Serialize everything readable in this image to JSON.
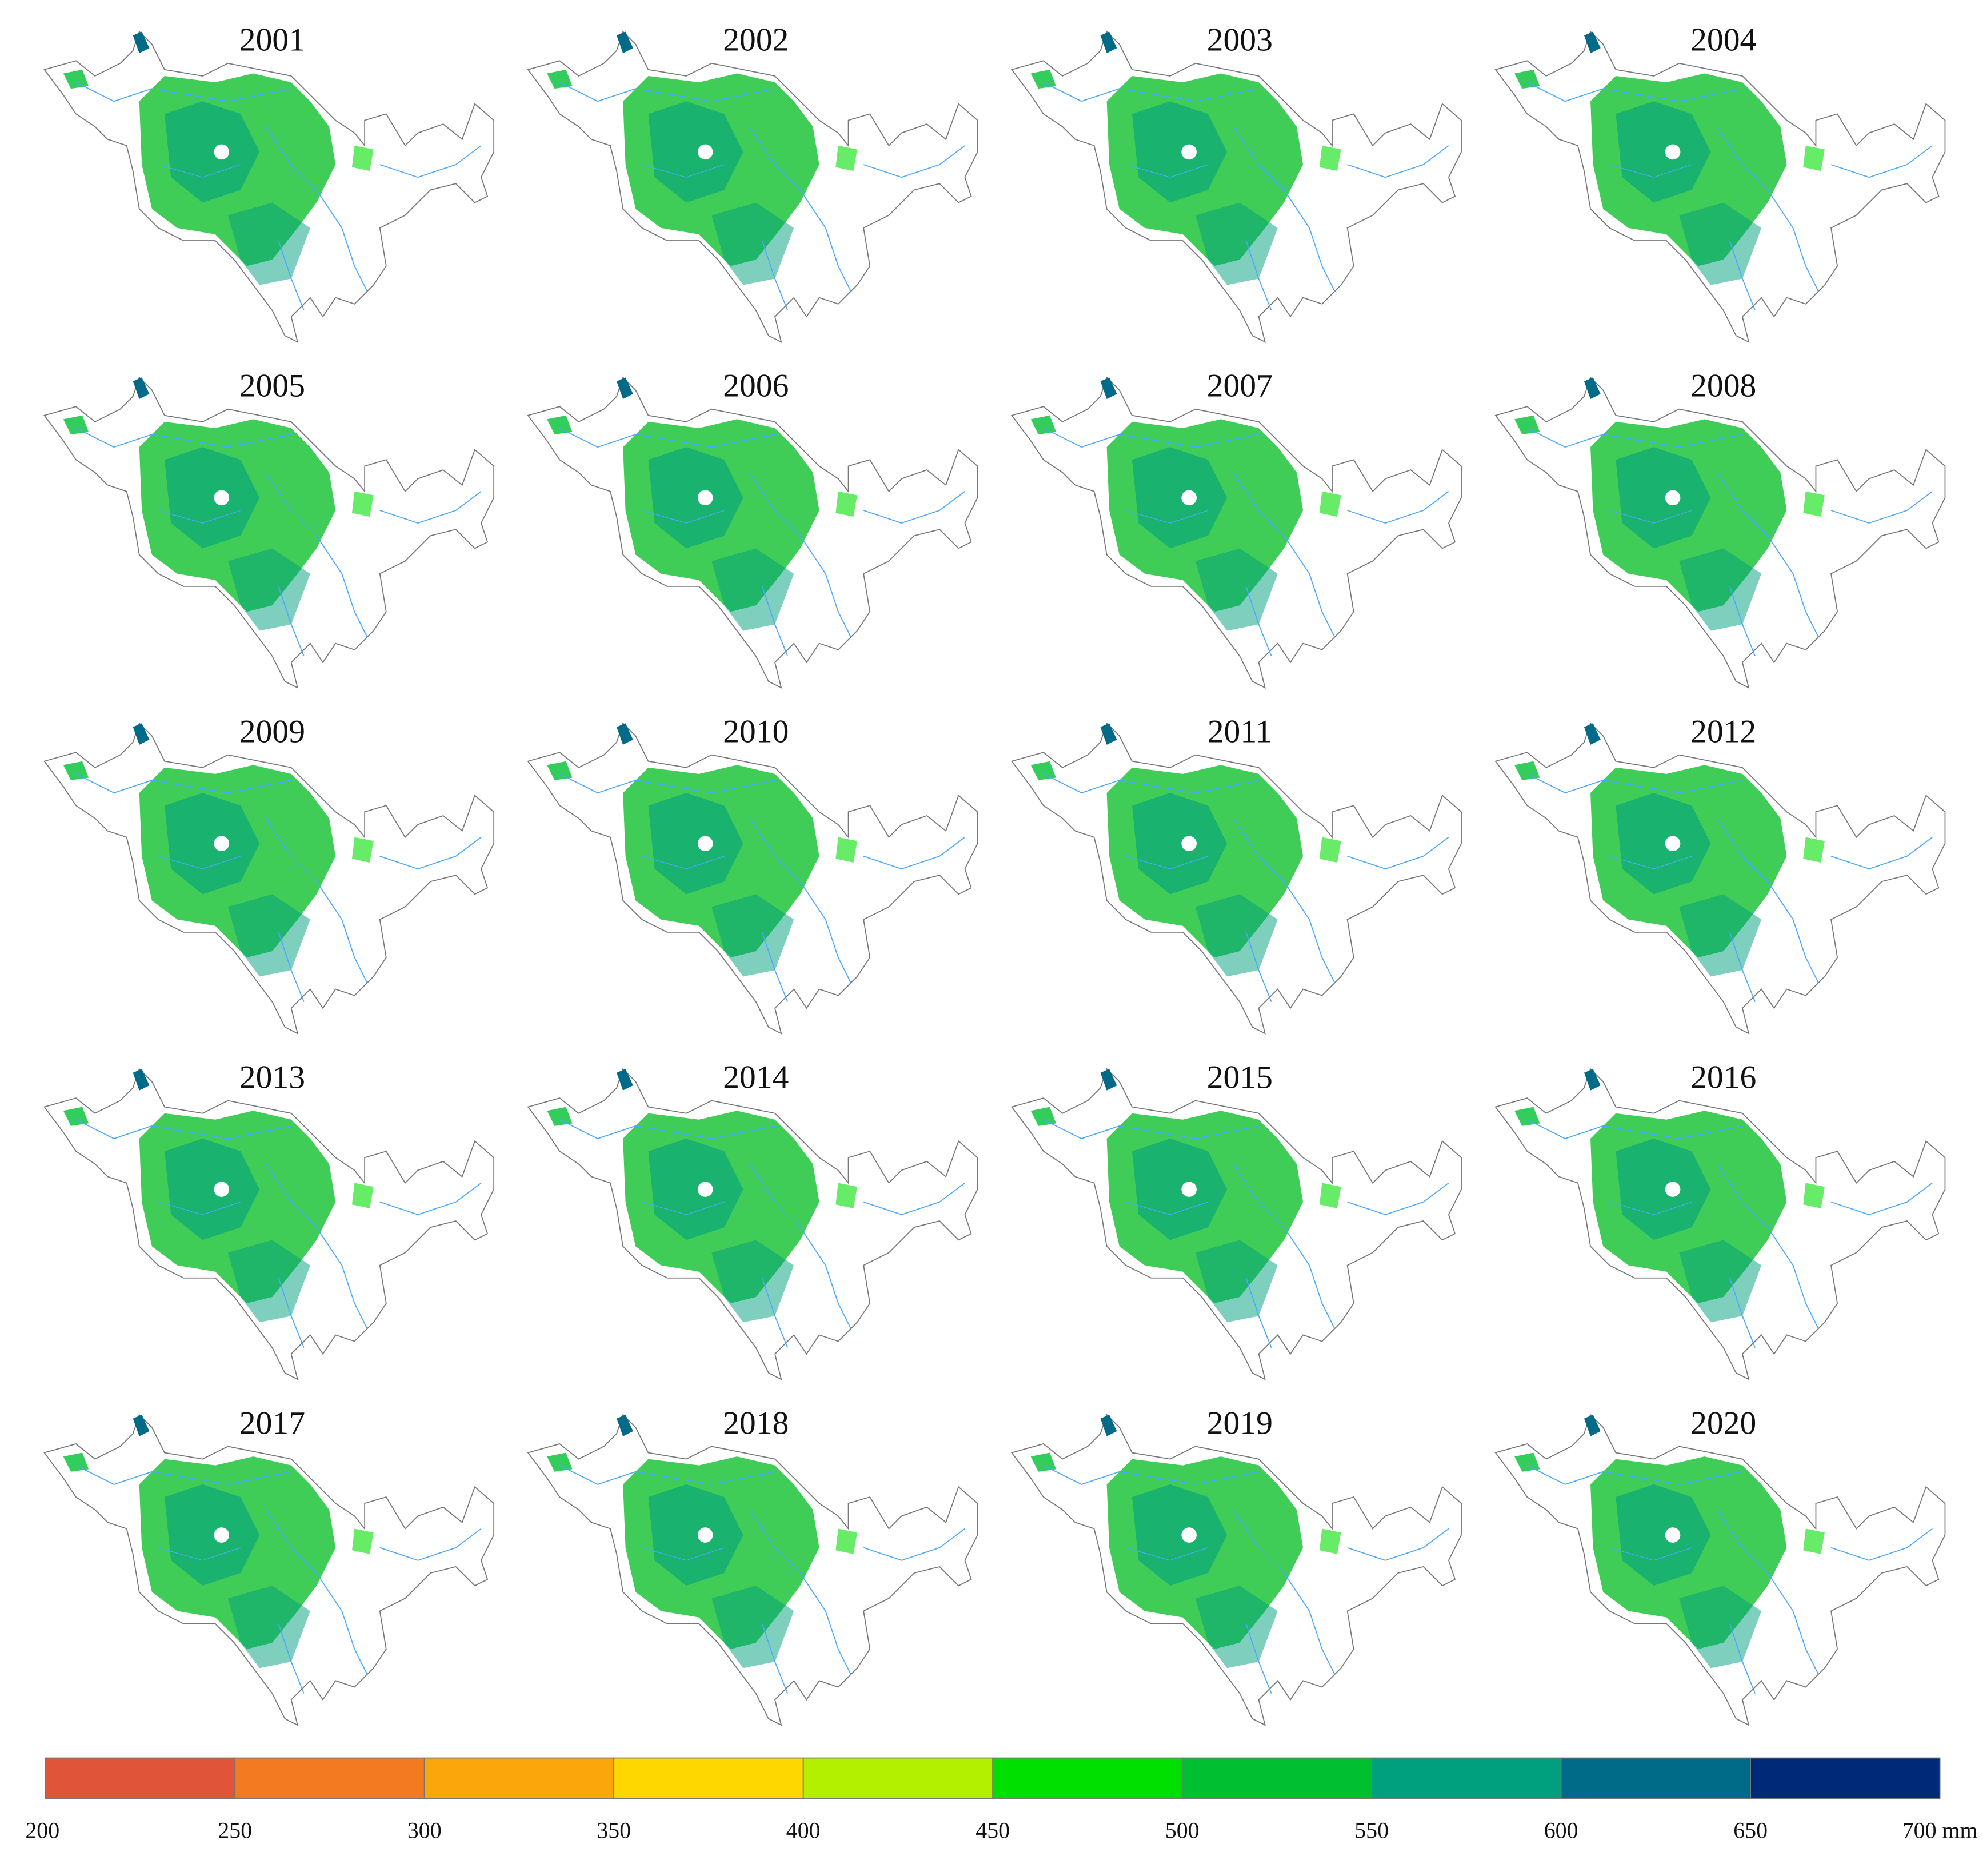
{
  "panels": [
    {
      "title": "2001"
    },
    {
      "title": "2002"
    },
    {
      "title": "2003"
    },
    {
      "title": "2004"
    },
    {
      "title": "2005"
    },
    {
      "title": "2006"
    },
    {
      "title": "2007"
    },
    {
      "title": "2008"
    },
    {
      "title": "2009"
    },
    {
      "title": "2010"
    },
    {
      "title": "2011"
    },
    {
      "title": "2012"
    },
    {
      "title": "2013"
    },
    {
      "title": "2014"
    },
    {
      "title": "2015"
    },
    {
      "title": "2016"
    },
    {
      "title": "2017"
    },
    {
      "title": "2018"
    },
    {
      "title": "2019"
    },
    {
      "title": "2020"
    }
  ],
  "legend": {
    "ticks": [
      200,
      250,
      300,
      350,
      400,
      450,
      500,
      550,
      600,
      650,
      {
        "value": 700,
        "label": "700 mm"
      }
    ],
    "colors": [
      "#e0553a",
      "#f47a22",
      "#fba70c",
      "#ffd700",
      "#b2f000",
      "#00e000",
      "#00c032",
      "#00a07e",
      "#006b88",
      "#002a78"
    ]
  }
}
